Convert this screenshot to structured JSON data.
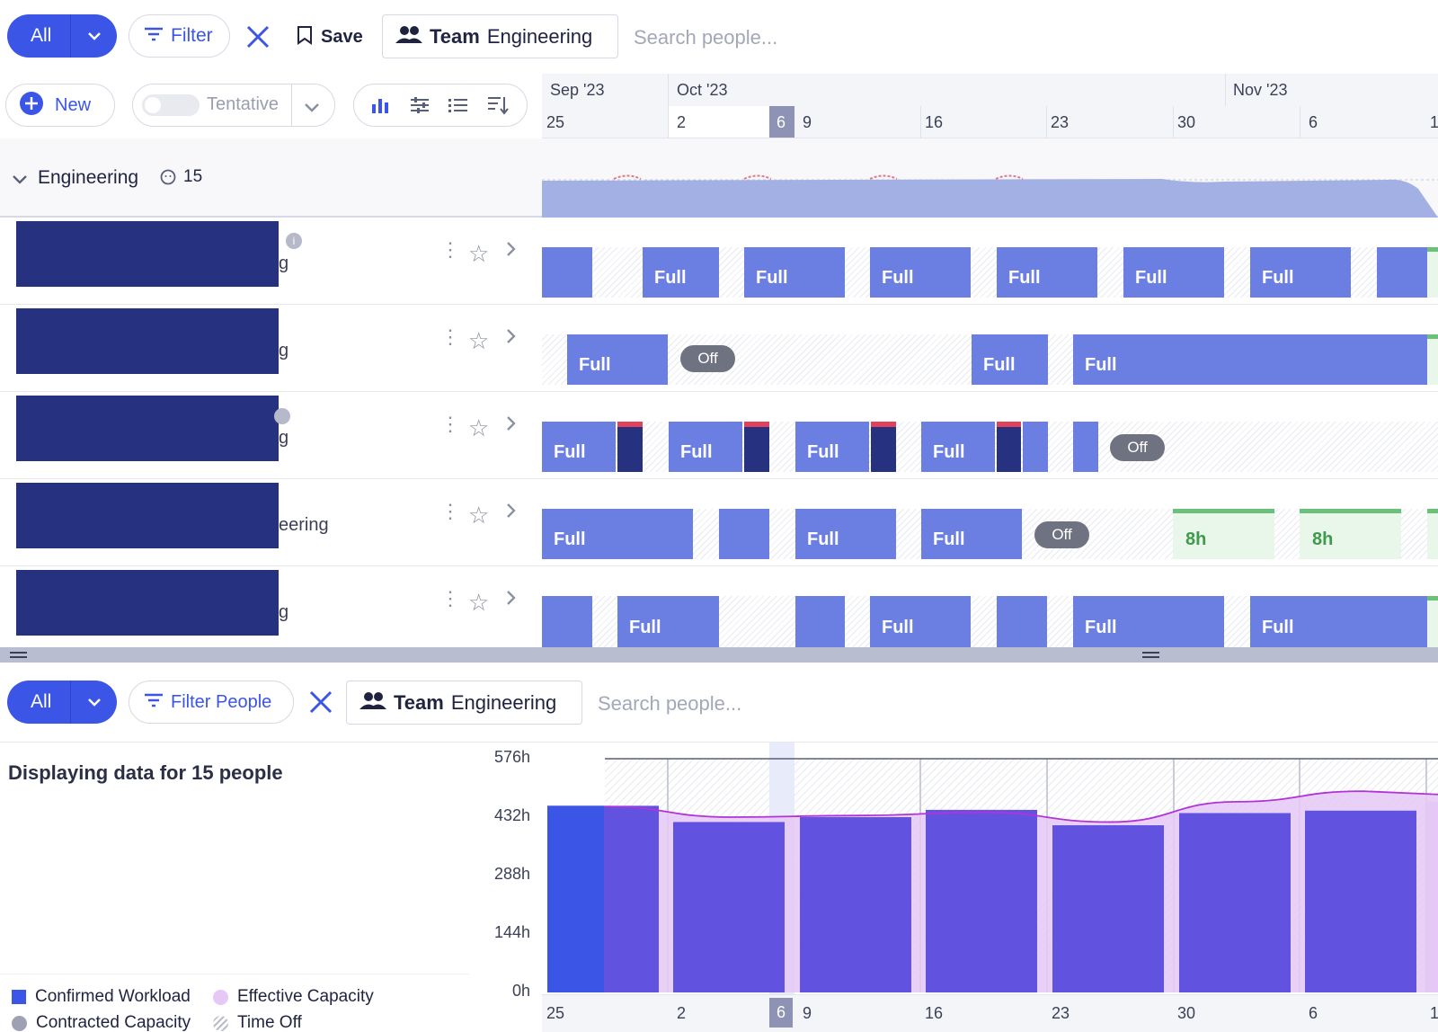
{
  "top_toolbar": {
    "all_label": "All",
    "filter_label": "Filter",
    "save_label": "Save",
    "team_prefix": "Team",
    "team_name": "Engineering",
    "search_placeholder": "Search people..."
  },
  "sub_toolbar": {
    "new_label": "New",
    "tentative_label": "Tentative"
  },
  "timeline": {
    "months": [
      "Sep '23",
      "Oct '23",
      "Nov '23"
    ],
    "days": [
      "25",
      "2",
      "6",
      "9",
      "16",
      "23",
      "30",
      "6",
      "1"
    ],
    "today": "6"
  },
  "group": {
    "name": "Engineering",
    "count": "15"
  },
  "rows": [
    {
      "name_fragment": "g",
      "bars": [
        "Full",
        "Full",
        "Full",
        "Full",
        "Full",
        "Full"
      ]
    },
    {
      "name_fragment": "g",
      "bars": [
        "Full",
        "Off",
        "Full",
        "Full"
      ]
    },
    {
      "name_fragment": "g",
      "bars": [
        "Full",
        "Full",
        "Full",
        "Full",
        "Off"
      ]
    },
    {
      "name_fragment": "eering",
      "bars": [
        "Full",
        "Full",
        "Full",
        "Off",
        "8h",
        "8h"
      ]
    },
    {
      "name_fragment": "g",
      "bars": [
        "Full",
        "Full",
        "Full",
        "Full"
      ]
    }
  ],
  "bottom_toolbar": {
    "all_label": "All",
    "filter_label": "Filter People",
    "team_prefix": "Team",
    "team_name": "Engineering",
    "search_placeholder": "Search people..."
  },
  "chart_panel": {
    "summary": "Displaying data for 15 people"
  },
  "chart_data": {
    "type": "bar",
    "categories": [
      "25",
      "2",
      "9",
      "16",
      "23",
      "30",
      "6"
    ],
    "series": [
      {
        "name": "Confirmed Workload",
        "values": [
          460,
          420,
          432,
          450,
          412,
          442,
          448
        ]
      },
      {
        "name": "Effective Capacity",
        "values": [
          458,
          432,
          436,
          444,
          420,
          470,
          496
        ]
      }
    ],
    "yticks": [
      "576h",
      "432h",
      "288h",
      "144h",
      "0h"
    ],
    "ylim": [
      0,
      576
    ],
    "xticks": [
      "25",
      "2",
      "6",
      "9",
      "16",
      "23",
      "30",
      "6",
      "1"
    ],
    "legend": [
      "Confirmed Workload",
      "Effective Capacity",
      "Contracted Capacity",
      "Time Off"
    ],
    "colors": {
      "workload": "#6152e0",
      "capacity": "#e5c8f5",
      "contracted": "#9ea1b4",
      "accent": "#3b55e6"
    }
  }
}
